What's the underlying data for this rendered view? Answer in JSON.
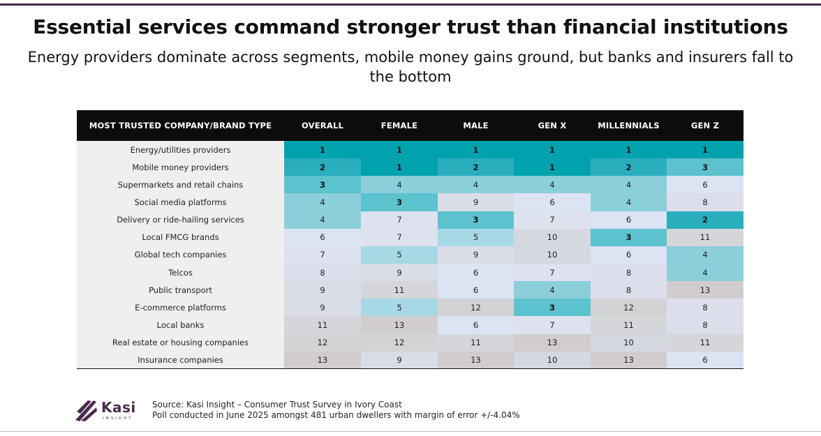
{
  "title": "Essential services command stronger trust than financial institutions",
  "subtitle": "Energy providers dominate across segments, mobile money gains ground, but banks and insurers fall to the bottom",
  "chart_data": {
    "type": "table",
    "columns": [
      "MOST TRUSTED COMPANY/BRAND TYPE",
      "OVERALL",
      "FEMALE",
      "MALE",
      "GEN X",
      "MILLENNIALS",
      "GEN Z"
    ],
    "rows": [
      {
        "label": "Energy/utilities providers",
        "values": [
          1,
          1,
          1,
          1,
          1,
          1
        ]
      },
      {
        "label": "Mobile money providers",
        "values": [
          2,
          1,
          2,
          1,
          2,
          3
        ]
      },
      {
        "label": "Supermarkets and retail chains",
        "values": [
          3,
          4,
          4,
          4,
          4,
          6
        ]
      },
      {
        "label": "Social media platforms",
        "values": [
          4,
          3,
          9,
          6,
          4,
          8
        ]
      },
      {
        "label": "Delivery or ride-hailing services",
        "values": [
          4,
          7,
          3,
          7,
          6,
          2
        ]
      },
      {
        "label": "Local FMCG brands",
        "values": [
          6,
          7,
          5,
          10,
          3,
          11
        ]
      },
      {
        "label": "Global tech companies",
        "values": [
          7,
          5,
          9,
          10,
          6,
          4
        ]
      },
      {
        "label": "Telcos",
        "values": [
          8,
          9,
          6,
          7,
          8,
          4
        ]
      },
      {
        "label": "Public transport",
        "values": [
          9,
          11,
          6,
          4,
          8,
          13
        ]
      },
      {
        "label": "E-commerce platforms",
        "values": [
          9,
          5,
          12,
          3,
          12,
          8
        ]
      },
      {
        "label": "Local banks",
        "values": [
          11,
          13,
          6,
          7,
          11,
          8
        ]
      },
      {
        "label": "Real estate or housing companies",
        "values": [
          12,
          12,
          11,
          13,
          10,
          11
        ]
      },
      {
        "label": "Insurance companies",
        "values": [
          13,
          9,
          13,
          10,
          13,
          6
        ]
      }
    ],
    "rank_colors": {
      "1": "#00a3ad",
      "2": "#2aaebe",
      "3": "#5bc2ce",
      "4": "#8bcfdb",
      "5": "#a7d8e5",
      "6": "#dce3f3",
      "7": "#dee2ee",
      "8": "#dcdfeb",
      "9": "#dadde6",
      "10": "#d6d8e0",
      "11": "#d4d6da",
      "12": "#d3d3d5",
      "13": "#d1cdcf"
    },
    "top_ranks_bold": 3
  },
  "logo": {
    "word": "Kasi",
    "sub": "INSIGHT",
    "color": "#4a2a4e"
  },
  "source": {
    "line1": "Source: Kasi Insight – Consumer Trust Survey in Ivory Coast",
    "line2": "Poll conducted in June 2025 amongst 481 urban dwellers with margin of error +/-4.04%"
  }
}
